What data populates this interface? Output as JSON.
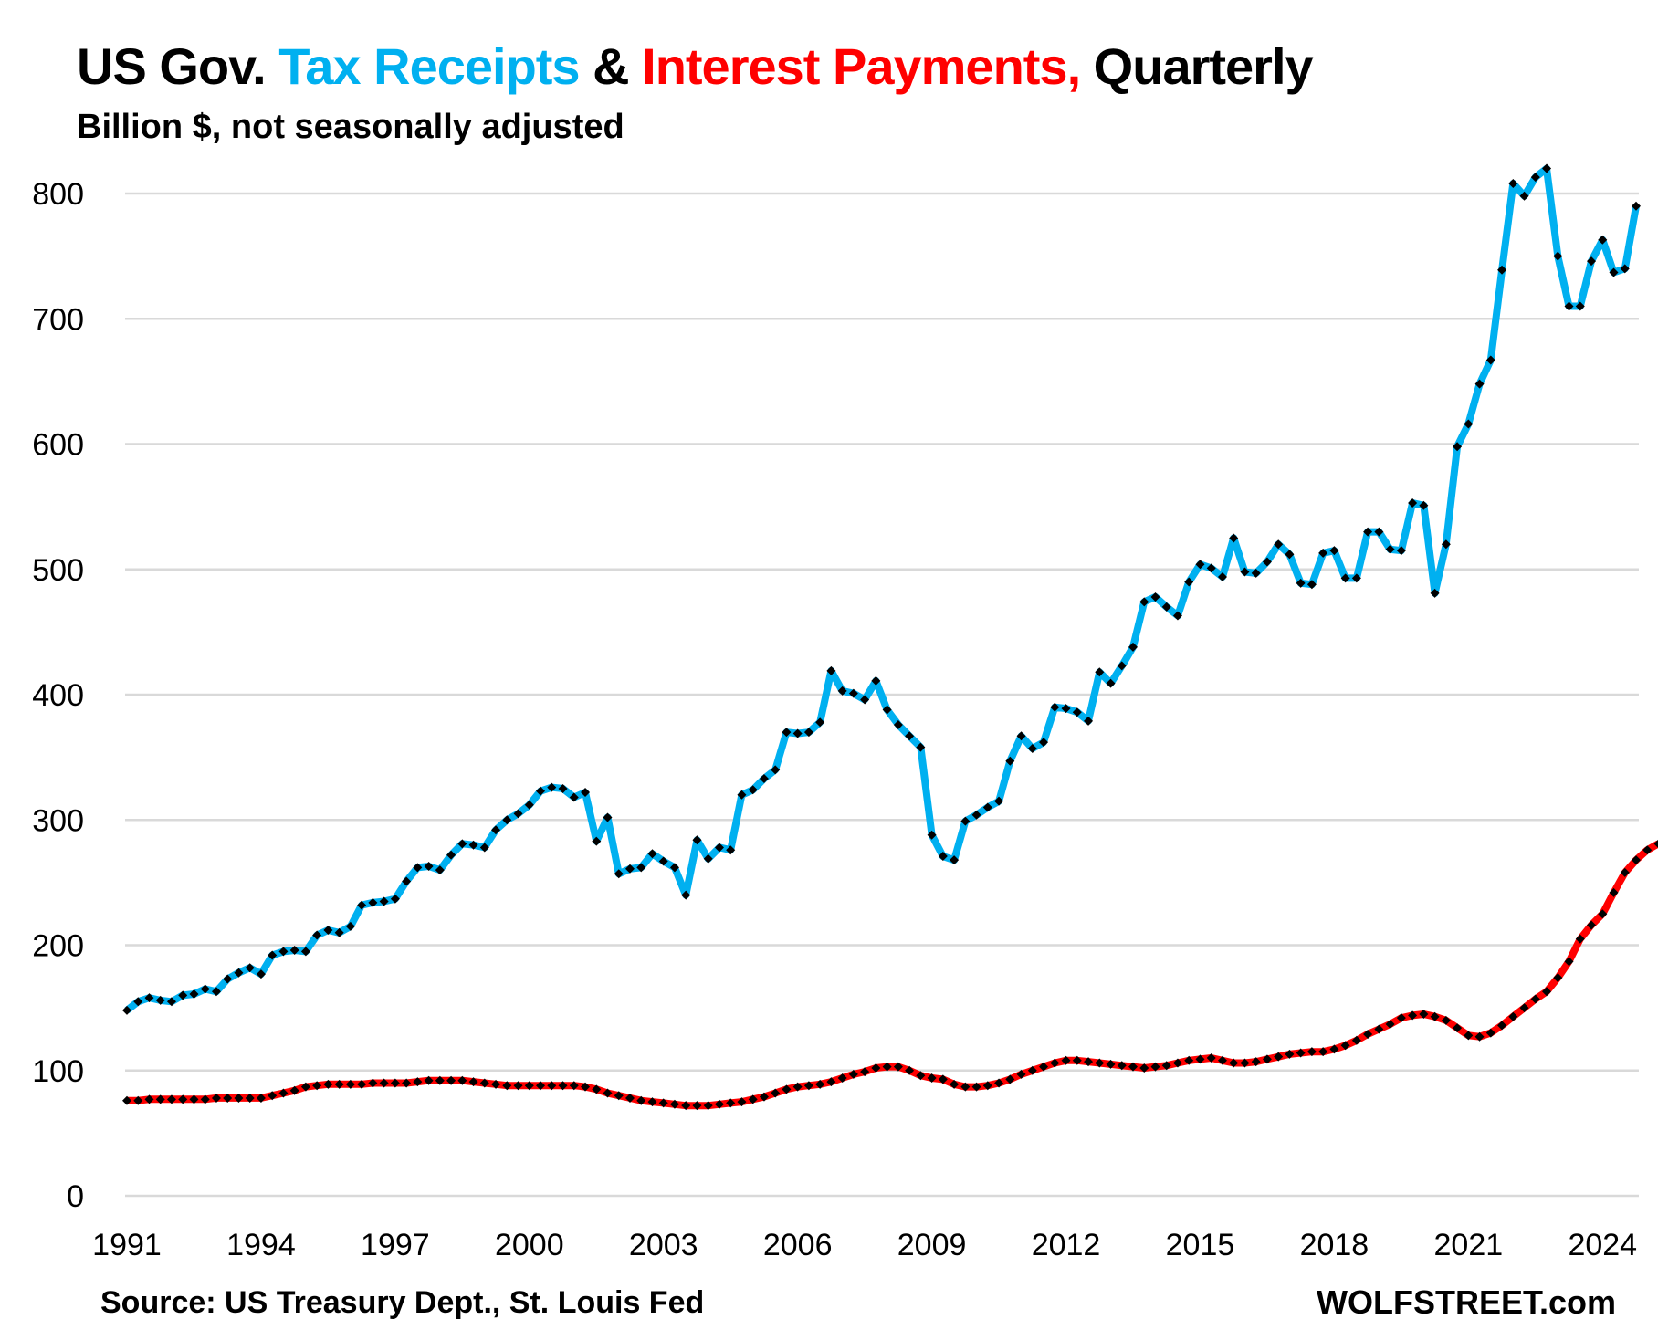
{
  "chart_data": {
    "type": "line",
    "title_parts": [
      {
        "text": "US Gov. ",
        "color": "#000000"
      },
      {
        "text": "Tax Receipts",
        "color": "#00B0F0"
      },
      {
        "text": " & ",
        "color": "#000000"
      },
      {
        "text": "Interest Payments,",
        "color": "#FF0000"
      },
      {
        "text": " Quarterly",
        "color": "#000000"
      }
    ],
    "subtitle": "Billion $, not seasonally adjusted",
    "xlabel": "",
    "ylabel": "",
    "ylim": [
      0,
      800
    ],
    "yticks": [
      0,
      100,
      200,
      300,
      400,
      500,
      600,
      700,
      800
    ],
    "xticks": [
      "1991",
      "1994",
      "1997",
      "2000",
      "2003",
      "2006",
      "2009",
      "2012",
      "2015",
      "2018",
      "2021",
      "2024"
    ],
    "x_start": "1991 Q1",
    "frequency": "quarterly",
    "grid": true,
    "legend": "in title",
    "marker": "black diamond",
    "series": [
      {
        "name": "Tax Receipts",
        "color": "#00B0F0",
        "values": [
          148,
          155,
          158,
          156,
          155,
          160,
          161,
          165,
          163,
          173,
          178,
          182,
          177,
          192,
          195,
          196,
          195,
          208,
          212,
          210,
          215,
          232,
          234,
          235,
          237,
          251,
          262,
          263,
          260,
          272,
          281,
          280,
          278,
          292,
          300,
          305,
          312,
          323,
          326,
          325,
          318,
          322,
          283,
          302,
          257,
          261,
          262,
          273,
          267,
          262,
          240,
          284,
          269,
          278,
          276,
          320,
          324,
          333,
          340,
          370,
          369,
          370,
          378,
          419,
          403,
          401,
          396,
          411,
          388,
          376,
          367,
          358,
          288,
          271,
          268,
          299,
          304,
          310,
          315,
          347,
          367,
          357,
          362,
          390,
          389,
          386,
          379,
          418,
          409,
          423,
          438,
          474,
          478,
          470,
          463,
          490,
          504,
          501,
          494,
          525,
          498,
          497,
          506,
          520,
          512,
          489,
          488,
          513,
          515,
          493,
          493,
          530,
          530,
          516,
          515,
          553,
          551,
          481,
          520,
          598,
          616,
          648,
          667,
          739,
          808,
          798,
          813,
          820,
          750,
          710,
          710,
          746,
          763,
          737,
          740,
          790
        ]
      },
      {
        "name": "Interest Payments",
        "color": "#FF0000",
        "values": [
          76,
          76,
          77,
          77,
          77,
          77,
          77,
          77,
          78,
          78,
          78,
          78,
          78,
          80,
          82,
          84,
          87,
          88,
          89,
          89,
          89,
          89,
          90,
          90,
          90,
          90,
          91,
          92,
          92,
          92,
          92,
          91,
          90,
          89,
          88,
          88,
          88,
          88,
          88,
          88,
          88,
          87,
          85,
          82,
          80,
          78,
          76,
          75,
          74,
          73,
          72,
          72,
          72,
          73,
          74,
          75,
          77,
          79,
          82,
          85,
          87,
          88,
          89,
          91,
          94,
          97,
          99,
          102,
          103,
          103,
          100,
          96,
          94,
          93,
          89,
          87,
          87,
          88,
          90,
          93,
          97,
          100,
          103,
          106,
          108,
          108,
          107,
          106,
          105,
          104,
          103,
          102,
          103,
          104,
          106,
          108,
          109,
          110,
          108,
          106,
          106,
          107,
          109,
          111,
          113,
          114,
          115,
          115,
          117,
          120,
          124,
          129,
          133,
          137,
          142,
          144,
          145,
          143,
          140,
          134,
          128,
          127,
          130,
          136,
          143,
          150,
          157,
          163,
          174,
          187,
          205,
          216,
          225,
          242,
          258,
          268,
          276,
          281
        ]
      }
    ]
  },
  "footer": {
    "source": "Source: US Treasury Dept., St. Louis Fed",
    "brand": "WOLFSTREET.com"
  }
}
